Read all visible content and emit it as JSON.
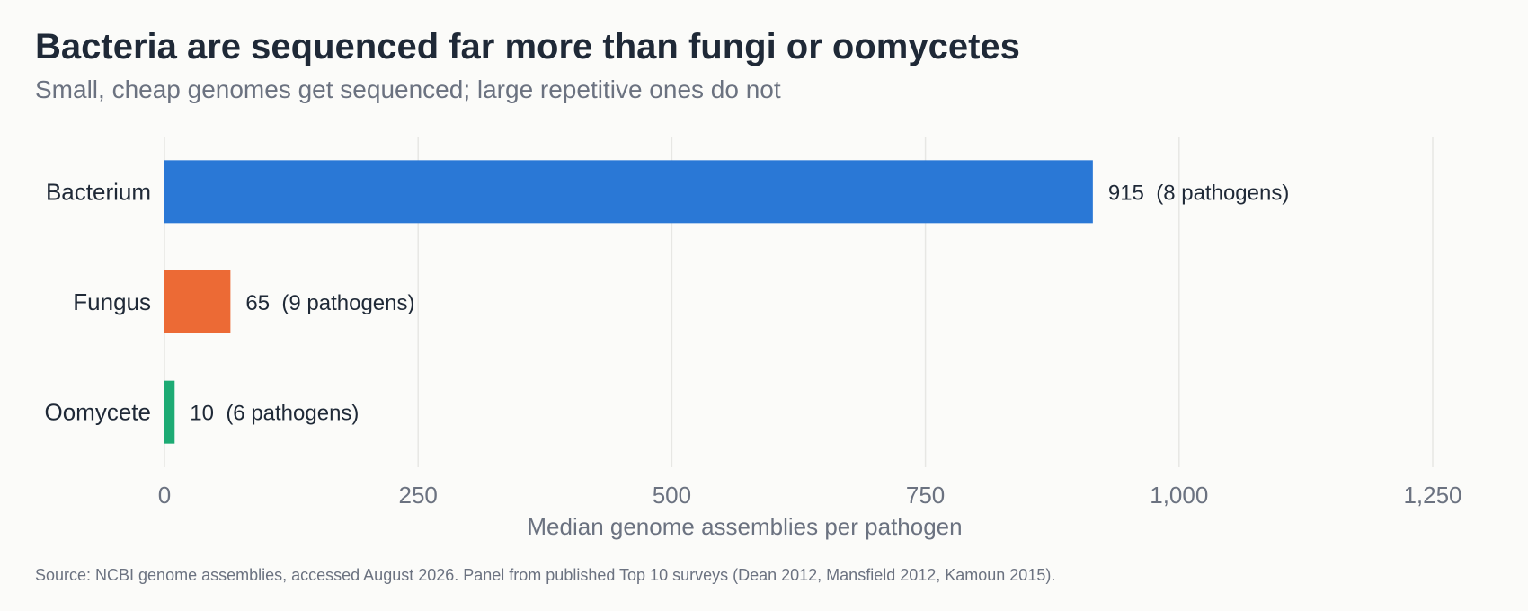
{
  "title": "Bacteria are sequenced far more than fungi or oomycetes",
  "subtitle": "Small, cheap genomes get sequenced; large repetitive ones do not",
  "source": "Source: NCBI genome assemblies, accessed August 2026. Panel from published Top 10 surveys (Dean 2012, Mansfield 2012, Kamoun 2015).",
  "chart_data": {
    "type": "bar",
    "orientation": "horizontal",
    "categories": [
      "Bacterium",
      "Fungus",
      "Oomycete"
    ],
    "values": [
      915,
      65,
      10
    ],
    "value_labels": [
      "915  (8 pathogens)",
      "65  (9 pathogens)",
      "10  (6 pathogens)"
    ],
    "colors": [
      "#2a78d6",
      "#ec6a35",
      "#1dab74"
    ],
    "xlabel": "Median genome assemblies per pathogen",
    "ylabel": "",
    "xlim": [
      0,
      1250
    ],
    "xticks": [
      0,
      250,
      500,
      750,
      1000,
      1250
    ],
    "xtick_labels": [
      "0",
      "250",
      "500",
      "750",
      "1,000",
      "1,250"
    ],
    "grid": true
  }
}
